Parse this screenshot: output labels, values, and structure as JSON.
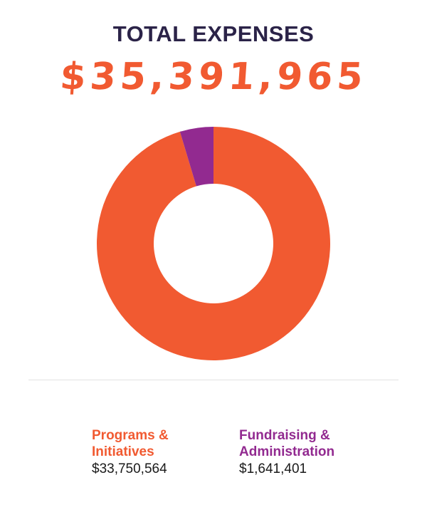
{
  "colors": {
    "accent": "#f15a31",
    "secondary": "#922a90",
    "title": "#2b2348"
  },
  "header": {
    "title": "TOTAL EXPENSES",
    "total": "$35,391,965"
  },
  "chart_data": {
    "type": "pie",
    "variant": "donut",
    "categories": [
      "Programs & Initiatives",
      "Fundraising & Administration"
    ],
    "values": [
      33750564,
      1641401
    ],
    "colors": [
      "#f15a31",
      "#922a90"
    ]
  },
  "legend": [
    {
      "name_line1": "Programs &",
      "name_line2": "Initiatives",
      "value": "$33,750,564",
      "color": "#f15a31"
    },
    {
      "name_line1": "Fundraising &",
      "name_line2": "Administration",
      "value": "$1,641,401",
      "color": "#922a90"
    }
  ]
}
